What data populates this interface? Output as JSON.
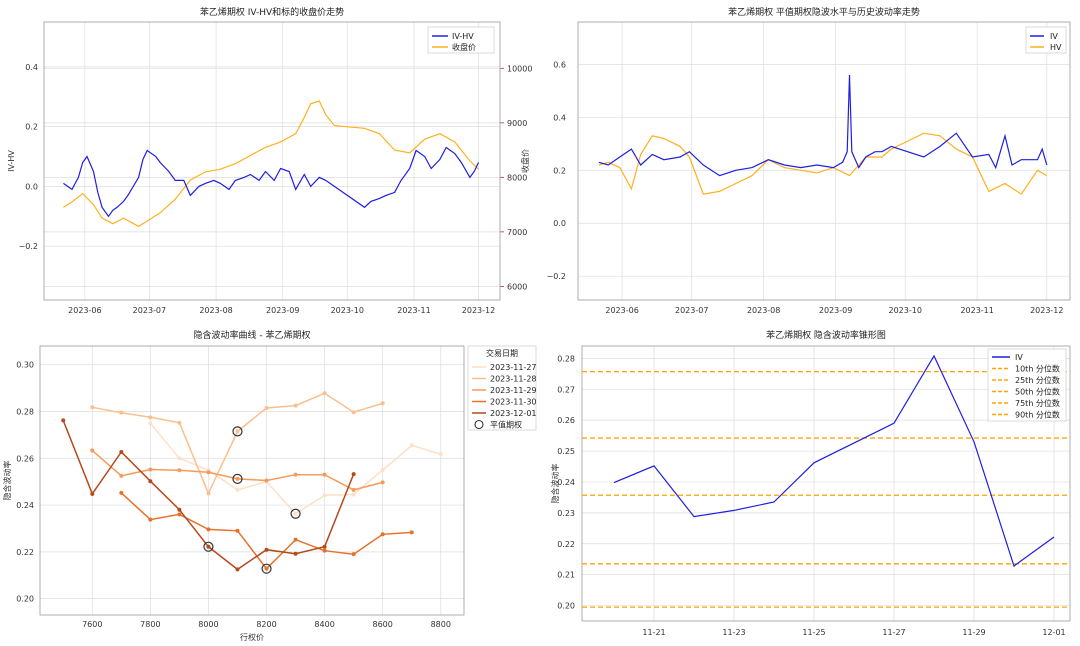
{
  "chart_data": [
    {
      "type": "line",
      "title": "苯乙烯期权 IV-HV和标的收盘价走势",
      "ylabel": "IV-HV",
      "y2label": "收盘价",
      "x_ticks": [
        "2023-06",
        "2023-07",
        "2023-08",
        "2023-09",
        "2023-10",
        "2023-11",
        "2023-12"
      ],
      "ylim": [
        -0.38,
        0.55
      ],
      "y_ticks": [
        "−0.2",
        "0.0",
        "0.2",
        "0.4"
      ],
      "y_tick_values": [
        -0.2,
        0.0,
        0.2,
        0.4
      ],
      "y2lim": [
        5750,
        10850
      ],
      "y2_ticks": [
        "6000",
        "7000",
        "8000",
        "9000",
        "10000"
      ],
      "y2_tick_values": [
        6000,
        7000,
        8000,
        9000,
        10000
      ],
      "legend": "top-right",
      "colors": {
        "left_axis": "#1f77b4",
        "right_axis": "#d62728"
      },
      "series": [
        {
          "name": "IV-HV",
          "color": "#1f1fe0",
          "axis": "left",
          "x": [
            "2023-05-22",
            "2023-05-24",
            "2023-05-26",
            "2023-05-29",
            "2023-05-31",
            "2023-06-02",
            "2023-06-05",
            "2023-06-07",
            "2023-06-09",
            "2023-06-12",
            "2023-06-14",
            "2023-06-16",
            "2023-06-19",
            "2023-06-21",
            "2023-06-26",
            "2023-06-28",
            "2023-06-30",
            "2023-07-04",
            "2023-07-06",
            "2023-07-10",
            "2023-07-13",
            "2023-07-17",
            "2023-07-20",
            "2023-07-24",
            "2023-07-27",
            "2023-07-31",
            "2023-08-03",
            "2023-08-07",
            "2023-08-10",
            "2023-08-14",
            "2023-08-17",
            "2023-08-21",
            "2023-08-24",
            "2023-08-28",
            "2023-08-31",
            "2023-09-04",
            "2023-09-07",
            "2023-09-11",
            "2023-09-14",
            "2023-09-18",
            "2023-09-21",
            "2023-09-25",
            "2023-10-09",
            "2023-10-12",
            "2023-10-16",
            "2023-10-19",
            "2023-10-23",
            "2023-10-26",
            "2023-10-30",
            "2023-11-02",
            "2023-11-06",
            "2023-11-09",
            "2023-11-13",
            "2023-11-16",
            "2023-11-20",
            "2023-11-23",
            "2023-11-27",
            "2023-11-29",
            "2023-12-01"
          ],
          "values": [
            0.01,
            0.0,
            -0.01,
            0.03,
            0.08,
            0.1,
            0.05,
            -0.02,
            -0.07,
            -0.1,
            -0.08,
            -0.07,
            -0.05,
            -0.03,
            0.03,
            0.09,
            0.12,
            0.1,
            0.08,
            0.05,
            0.02,
            0.02,
            -0.03,
            0.0,
            0.01,
            0.02,
            0.01,
            -0.01,
            0.02,
            0.03,
            0.04,
            0.02,
            0.05,
            0.02,
            0.06,
            0.05,
            -0.01,
            0.04,
            0.0,
            0.03,
            0.02,
            0.0,
            -0.07,
            -0.05,
            -0.04,
            -0.03,
            -0.02,
            0.02,
            0.06,
            0.12,
            0.1,
            0.06,
            0.09,
            0.13,
            0.11,
            0.08,
            0.03,
            0.05,
            0.08
          ]
        },
        {
          "name": "收盘价",
          "color": "#ffb020",
          "axis": "right",
          "x": [
            "2023-05-22",
            "2023-05-26",
            "2023-05-31",
            "2023-06-05",
            "2023-06-09",
            "2023-06-14",
            "2023-06-19",
            "2023-06-26",
            "2023-06-30",
            "2023-07-06",
            "2023-07-13",
            "2023-07-20",
            "2023-07-27",
            "2023-08-03",
            "2023-08-10",
            "2023-08-17",
            "2023-08-24",
            "2023-08-31",
            "2023-09-07",
            "2023-09-11",
            "2023-09-14",
            "2023-09-18",
            "2023-09-21",
            "2023-09-25",
            "2023-10-09",
            "2023-10-16",
            "2023-10-23",
            "2023-10-30",
            "2023-11-06",
            "2023-11-13",
            "2023-11-20",
            "2023-11-27",
            "2023-12-01"
          ],
          "values": [
            7450,
            7550,
            7700,
            7500,
            7250,
            7150,
            7250,
            7100,
            7200,
            7350,
            7600,
            7950,
            8100,
            8150,
            8250,
            8400,
            8550,
            8650,
            8800,
            9100,
            9350,
            9400,
            9150,
            8950,
            8900,
            8800,
            8500,
            8450,
            8700,
            8800,
            8650,
            8300,
            8150
          ]
        }
      ]
    },
    {
      "type": "line",
      "title": "苯乙烯期权 平值期权隐波水平与历史波动率走势",
      "x_ticks": [
        "2023-06",
        "2023-07",
        "2023-08",
        "2023-09",
        "2023-10",
        "2023-11",
        "2023-12"
      ],
      "ylim": [
        -0.29,
        0.76
      ],
      "y_ticks": [
        "−0.2",
        "0.0",
        "0.2",
        "0.4",
        "0.6"
      ],
      "y_tick_values": [
        -0.2,
        0.0,
        0.2,
        0.4,
        0.6
      ],
      "legend": "top-right",
      "series": [
        {
          "name": "IV",
          "color": "#1f1fe0",
          "x": [
            "2023-05-22",
            "2023-05-26",
            "2023-05-31",
            "2023-06-05",
            "2023-06-09",
            "2023-06-14",
            "2023-06-19",
            "2023-06-26",
            "2023-06-30",
            "2023-07-06",
            "2023-07-13",
            "2023-07-20",
            "2023-07-27",
            "2023-08-03",
            "2023-08-10",
            "2023-08-17",
            "2023-08-24",
            "2023-08-31",
            "2023-09-04",
            "2023-09-06",
            "2023-09-07",
            "2023-09-08",
            "2023-09-11",
            "2023-09-14",
            "2023-09-18",
            "2023-09-21",
            "2023-09-25",
            "2023-10-09",
            "2023-10-16",
            "2023-10-23",
            "2023-10-30",
            "2023-11-06",
            "2023-11-09",
            "2023-11-13",
            "2023-11-16",
            "2023-11-20",
            "2023-11-27",
            "2023-11-29",
            "2023-12-01"
          ],
          "values": [
            0.23,
            0.22,
            0.25,
            0.28,
            0.22,
            0.26,
            0.24,
            0.25,
            0.27,
            0.22,
            0.18,
            0.2,
            0.21,
            0.24,
            0.22,
            0.21,
            0.22,
            0.21,
            0.23,
            0.27,
            0.56,
            0.27,
            0.21,
            0.25,
            0.27,
            0.27,
            0.29,
            0.25,
            0.29,
            0.34,
            0.25,
            0.26,
            0.21,
            0.33,
            0.22,
            0.24,
            0.24,
            0.28,
            0.22
          ]
        },
        {
          "name": "HV",
          "color": "#ffb020",
          "x": [
            "2023-05-22",
            "2023-05-26",
            "2023-05-31",
            "2023-06-05",
            "2023-06-09",
            "2023-06-14",
            "2023-06-19",
            "2023-06-26",
            "2023-06-30",
            "2023-07-06",
            "2023-07-13",
            "2023-07-20",
            "2023-07-27",
            "2023-08-03",
            "2023-08-10",
            "2023-08-17",
            "2023-08-24",
            "2023-08-31",
            "2023-09-07",
            "2023-09-14",
            "2023-09-21",
            "2023-09-25",
            "2023-10-09",
            "2023-10-16",
            "2023-10-23",
            "2023-10-30",
            "2023-11-06",
            "2023-11-13",
            "2023-11-20",
            "2023-11-27",
            "2023-12-01"
          ],
          "values": [
            0.22,
            0.23,
            0.21,
            0.13,
            0.26,
            0.33,
            0.32,
            0.29,
            0.25,
            0.11,
            0.12,
            0.15,
            0.18,
            0.24,
            0.21,
            0.2,
            0.19,
            0.21,
            0.18,
            0.25,
            0.25,
            0.28,
            0.34,
            0.33,
            0.28,
            0.25,
            0.12,
            0.15,
            0.11,
            0.2,
            0.18
          ]
        }
      ]
    },
    {
      "type": "line",
      "title": "隐含波动率曲线 - 苯乙烯期权",
      "xlabel": "行权价",
      "ylabel": "隐含波动率",
      "xlim": [
        7420,
        8880
      ],
      "ylim": [
        0.193,
        0.308
      ],
      "x_ticks": [
        "7600",
        "7800",
        "8000",
        "8200",
        "8400",
        "8600",
        "8800"
      ],
      "x_tick_values": [
        7600,
        7800,
        8000,
        8200,
        8400,
        8600,
        8800
      ],
      "y_ticks": [
        "0.20",
        "0.22",
        "0.24",
        "0.26",
        "0.28",
        "0.30"
      ],
      "y_tick_values": [
        0.2,
        0.22,
        0.24,
        0.26,
        0.28,
        0.3
      ],
      "legend": {
        "title": "交易日期",
        "position": "outside-right",
        "atm_label": "平值期权"
      },
      "atm_points": [
        {
          "x": 8100,
          "y": 0.2715
        },
        {
          "x": 8100,
          "y": 0.2512
        },
        {
          "x": 8300,
          "y": 0.2363
        },
        {
          "x": 8000,
          "y": 0.2222
        },
        {
          "x": 8200,
          "y": 0.2128
        }
      ],
      "series": [
        {
          "name": "2023-11-27",
          "color": "#fde0c5",
          "x": [
            7800,
            7900,
            8000,
            8100,
            8200,
            8300,
            8400,
            8500,
            8600,
            8700,
            8800
          ],
          "values": [
            0.275,
            0.26,
            0.255,
            0.2465,
            0.25,
            0.2363,
            0.2442,
            0.2445,
            0.255,
            0.2655,
            0.2618
          ]
        },
        {
          "name": "2023-11-28",
          "color": "#fbbf8e",
          "x": [
            7600,
            7700,
            7800,
            7900,
            8000,
            8100,
            8200,
            8300,
            8400,
            8500,
            8600
          ],
          "values": [
            0.2818,
            0.2795,
            0.2775,
            0.2752,
            0.245,
            0.2715,
            0.2815,
            0.2825,
            0.2878,
            0.2797,
            0.2835
          ]
        },
        {
          "name": "2023-11-29",
          "color": "#f59a5a",
          "x": [
            7600,
            7700,
            7800,
            7900,
            8000,
            8100,
            8200,
            8300,
            8400,
            8500,
            8600
          ],
          "values": [
            0.2633,
            0.2525,
            0.2552,
            0.2549,
            0.254,
            0.2512,
            0.2505,
            0.253,
            0.253,
            0.2465,
            0.2497
          ]
        },
        {
          "name": "2023-11-30",
          "color": "#e6712a",
          "x": [
            7700,
            7800,
            7900,
            8000,
            8100,
            8200,
            8300,
            8400,
            8500,
            8600,
            8700
          ],
          "values": [
            0.2452,
            0.2338,
            0.236,
            0.2296,
            0.229,
            0.2128,
            0.2252,
            0.2205,
            0.219,
            0.2275,
            0.2283
          ]
        },
        {
          "name": "2023-12-01",
          "color": "#b5491b",
          "x": [
            7500,
            7600,
            7700,
            7800,
            7900,
            8000,
            8100,
            8200,
            8300,
            8400,
            8500
          ],
          "values": [
            0.2762,
            0.2448,
            0.2627,
            0.2502,
            0.238,
            0.2222,
            0.2125,
            0.2209,
            0.2192,
            0.2222,
            0.2532
          ]
        }
      ]
    },
    {
      "type": "line",
      "title": "苯乙烯期权 隐含波动率锥形图",
      "ylabel": "隐含波动率",
      "x": [
        "11-20",
        "11-21",
        "11-22",
        "11-23",
        "11-24",
        "11-25",
        "11-26",
        "11-27",
        "11-28",
        "11-29",
        "11-30",
        "12-01"
      ],
      "x_ticks": [
        "11-21",
        "11-23",
        "11-25",
        "11-27",
        "11-29",
        "12-01"
      ],
      "ylim": [
        0.195,
        0.284
      ],
      "y_ticks": [
        "0.20",
        "0.21",
        "0.22",
        "0.23",
        "0.24",
        "0.25",
        "0.26",
        "0.27",
        "0.28"
      ],
      "y_tick_values": [
        0.2,
        0.21,
        0.22,
        0.23,
        0.24,
        0.25,
        0.26,
        0.27,
        0.28
      ],
      "legend": "top-right",
      "series": [
        {
          "name": "IV",
          "color": "#1f1fe0",
          "values": [
            0.2398,
            0.2452,
            0.2288,
            0.2308,
            0.2335,
            0.2462,
            0.259,
            0.2808,
            0.253,
            0.2128,
            0.2222
          ],
          "x": [
            "11-20",
            "11-21",
            "11-22",
            "11-23",
            "11-24",
            "11-25",
            "11-27",
            "11-28",
            "11-29",
            "11-30",
            "12-01"
          ]
        }
      ],
      "percentiles": [
        {
          "name": "10th 分位数",
          "value": 0.1995
        },
        {
          "name": "25th 分位数",
          "value": 0.2135
        },
        {
          "name": "50th 分位数",
          "value": 0.2357
        },
        {
          "name": "75th 分位数",
          "value": 0.2542
        },
        {
          "name": "90th 分位数",
          "value": 0.2757
        }
      ],
      "percentile_color": "#ffa500"
    }
  ]
}
